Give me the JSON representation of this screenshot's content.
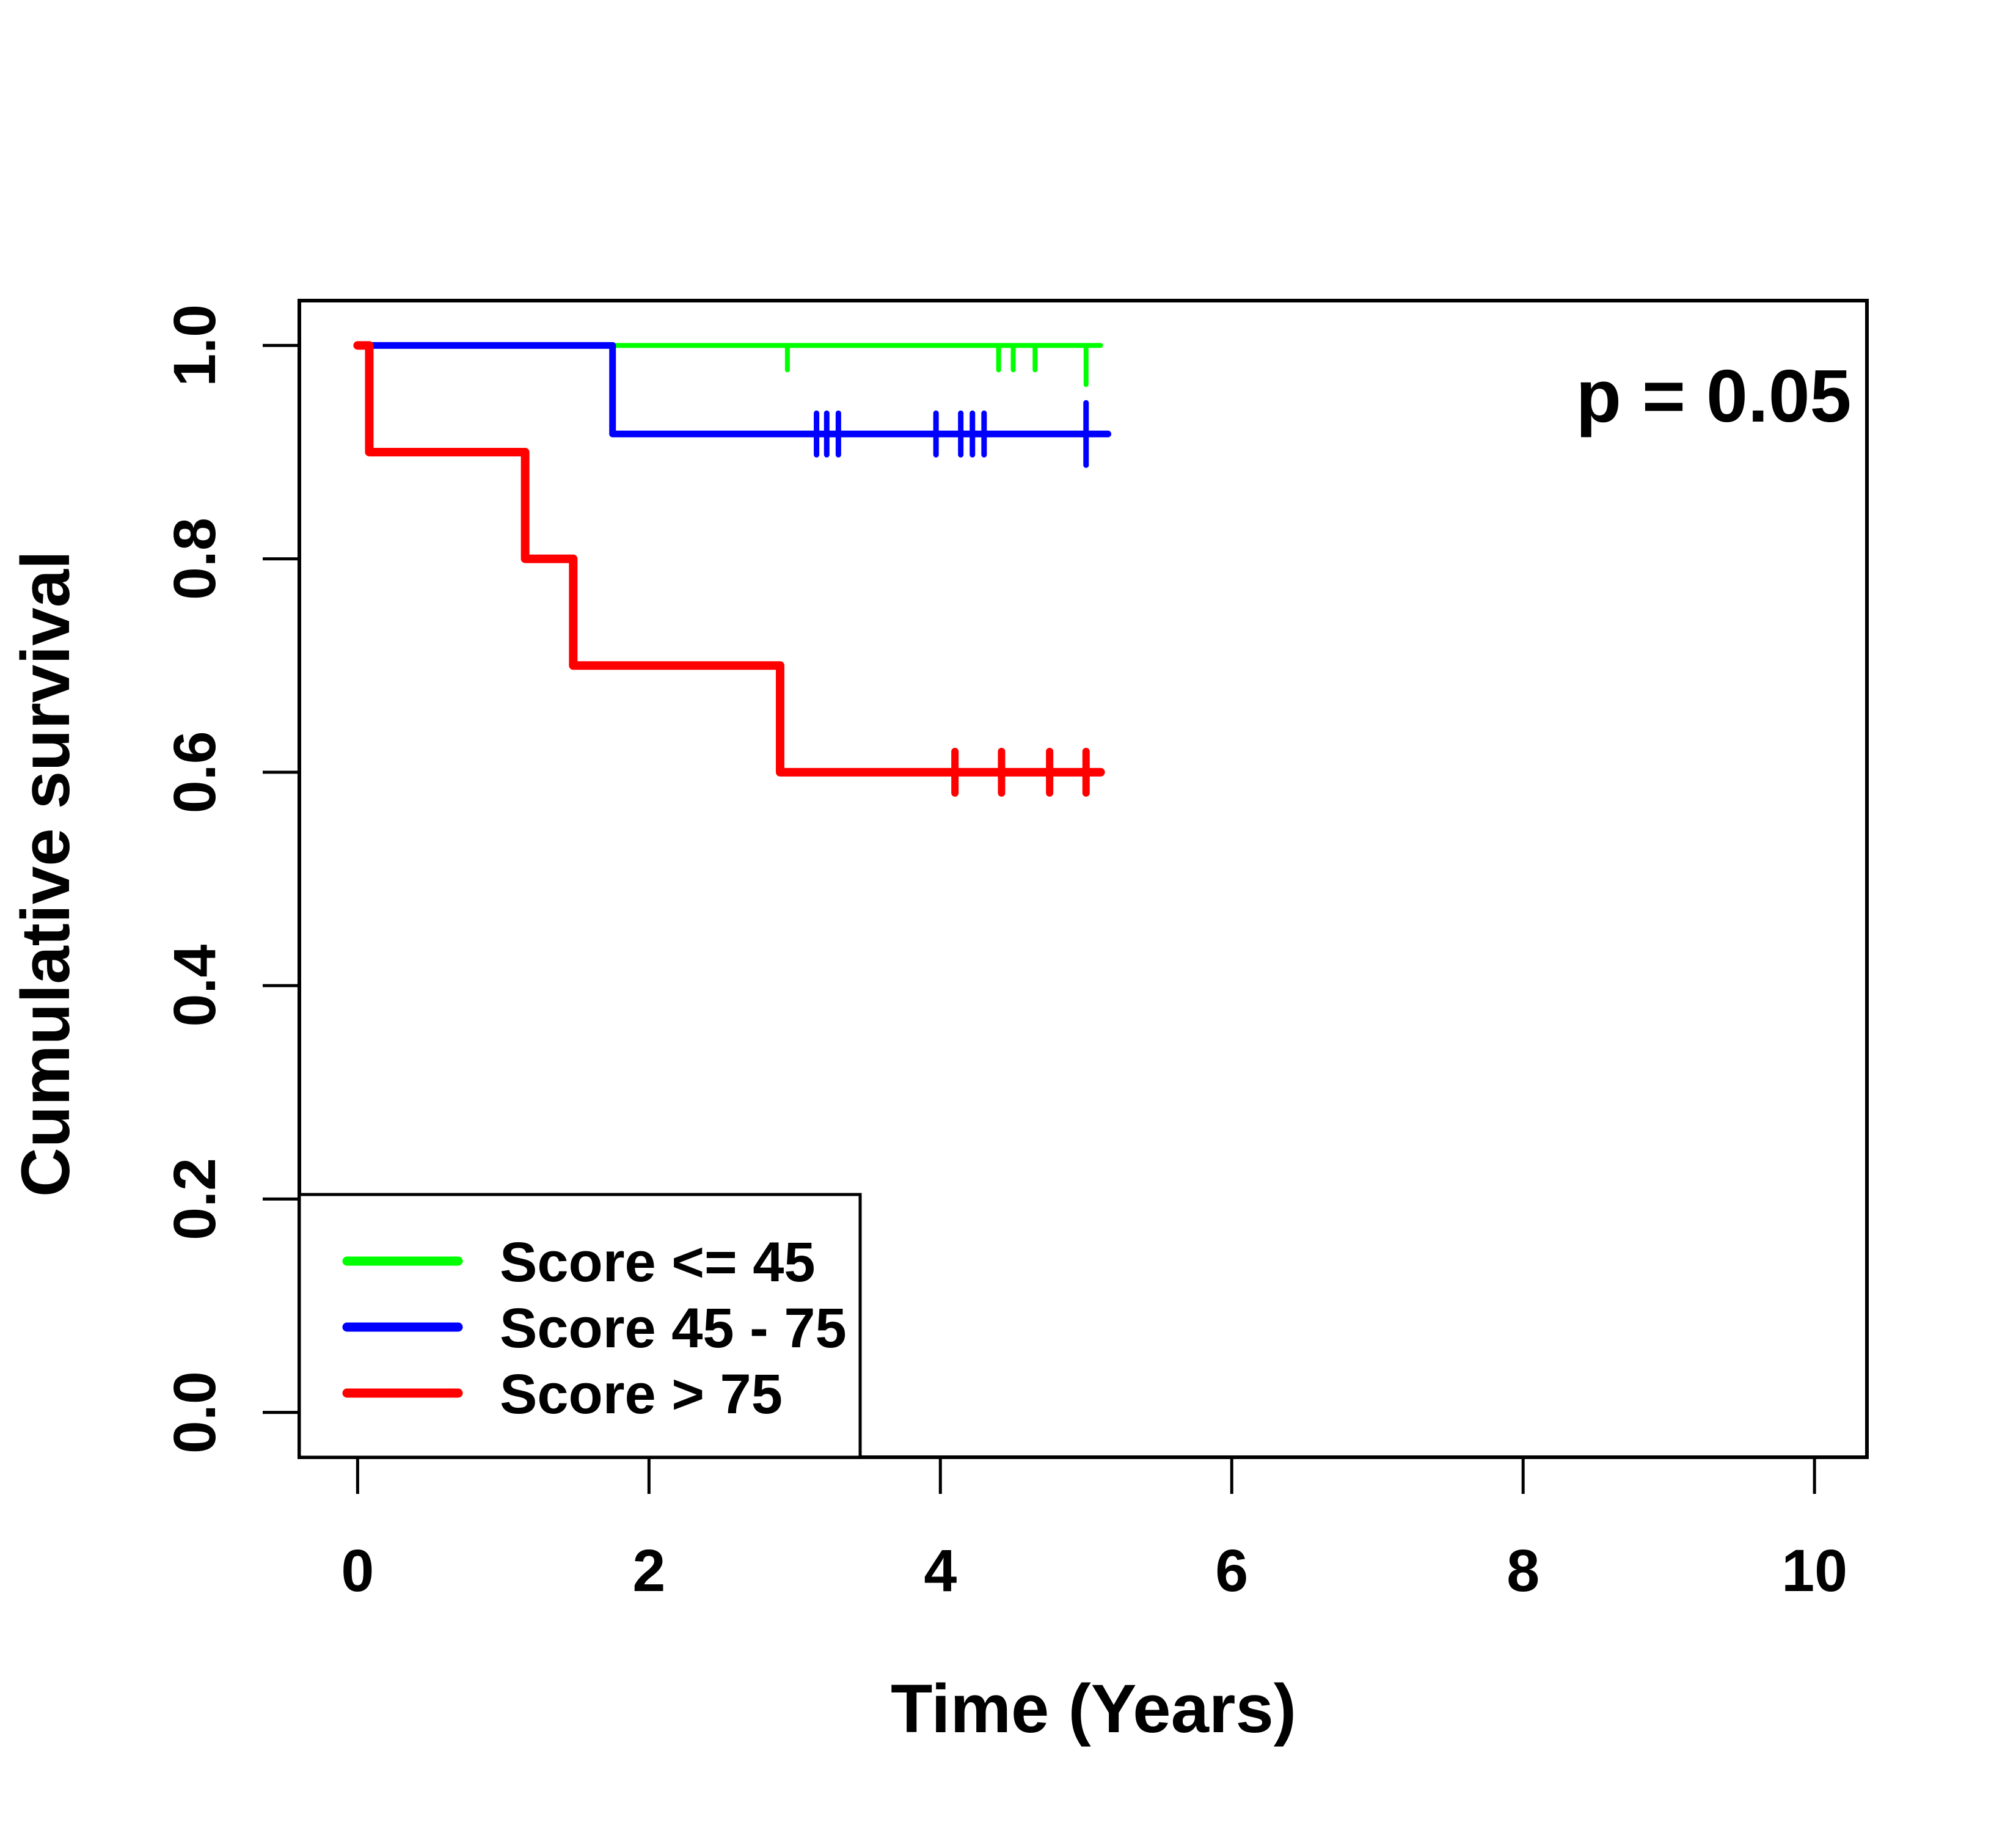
{
  "figure": {
    "background": "#FFFFFF",
    "text_color": "#000000",
    "x_axis": {
      "title": "Time (Years)",
      "tick_labels": [
        "0",
        "2",
        "4",
        "6",
        "8",
        "10"
      ]
    },
    "y_axis": {
      "title": "Cumulative survival",
      "tick_labels": [
        "0.0",
        "0.2",
        "0.4",
        "0.6",
        "0.8",
        "1.0"
      ]
    },
    "annotation": {
      "text": "p = 0.05"
    },
    "legend": {
      "entries": [
        {
          "label": "Score <= 45",
          "color": "#00FF00"
        },
        {
          "label": "Score 45 - 75",
          "color": "#0000FF"
        },
        {
          "label": "Score > 75",
          "color": "#FF0000"
        }
      ]
    }
  },
  "chart_data": {
    "type": "line",
    "subtype": "kaplan-meier-survival-step",
    "title": "",
    "xlabel": "Time (Years)",
    "ylabel": "Cumulative survival",
    "annotation": "p = 0.05",
    "x_ticks": [
      0,
      2,
      4,
      6,
      8,
      10
    ],
    "y_ticks": [
      0.0,
      0.2,
      0.4,
      0.6,
      0.8,
      1.0
    ],
    "xlim": [
      -0.4,
      10.36
    ],
    "ylim": [
      -0.042,
      1.042
    ],
    "grid": false,
    "legend_position": "bottom-left",
    "series": [
      {
        "name": "Score <= 45",
        "color": "#00FF00",
        "lwd": 8,
        "steps": [
          [
            0,
            1.0
          ],
          [
            5.1,
            1.0
          ]
        ],
        "censor_style": "down",
        "censors": [
          {
            "t": 2.95,
            "len": 1
          },
          {
            "t": 4.4,
            "len": 1
          },
          {
            "t": 4.5,
            "len": 1
          },
          {
            "t": 4.65,
            "len": 1
          },
          {
            "t": 5.0,
            "len": 1.6
          }
        ]
      },
      {
        "name": "Score 45 - 75",
        "color": "#0000FF",
        "lwd": 11,
        "steps": [
          [
            0,
            1.0
          ],
          [
            1.75,
            1.0
          ],
          [
            1.75,
            0.917
          ],
          [
            5.15,
            0.917
          ]
        ],
        "censor_style": "cross",
        "censors": [
          {
            "t": 3.15,
            "len": 1
          },
          {
            "t": 3.22,
            "len": 1
          },
          {
            "t": 3.3,
            "len": 1
          },
          {
            "t": 3.97,
            "len": 1
          },
          {
            "t": 4.14,
            "len": 1
          },
          {
            "t": 4.22,
            "len": 1
          },
          {
            "t": 4.3,
            "len": 1
          },
          {
            "t": 5.0,
            "len": 1.5
          }
        ]
      },
      {
        "name": "Score > 75",
        "color": "#FF0000",
        "lwd": 14,
        "steps": [
          [
            0,
            1.0
          ],
          [
            0.08,
            1.0
          ],
          [
            0.08,
            0.9
          ],
          [
            1.15,
            0.9
          ],
          [
            1.15,
            0.8
          ],
          [
            1.48,
            0.8
          ],
          [
            1.48,
            0.7
          ],
          [
            2.9,
            0.7
          ],
          [
            2.9,
            0.6
          ],
          [
            5.1,
            0.6
          ]
        ],
        "censor_style": "cross",
        "censors": [
          {
            "t": 4.1,
            "len": 1
          },
          {
            "t": 4.42,
            "len": 1
          },
          {
            "t": 4.75,
            "len": 1
          },
          {
            "t": 5.0,
            "len": 1
          }
        ]
      }
    ]
  }
}
